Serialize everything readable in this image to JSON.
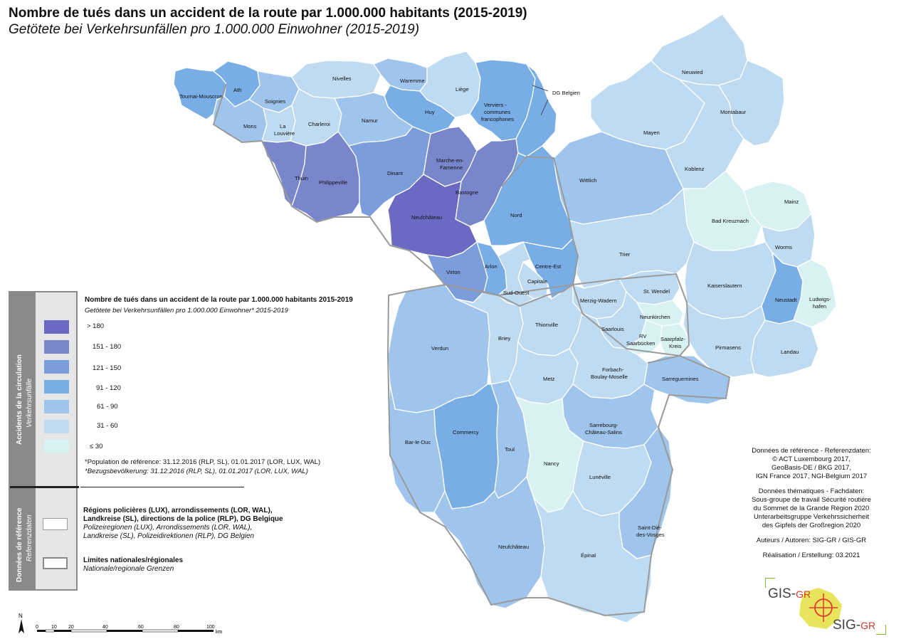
{
  "title": "Nombre de tués dans un accident de la route par 1.000.000 habitants (2015-2019)",
  "subtitle": "Getötete bei Verkehrsunfällen pro 1.000.000 Einwohner (2015-2019)",
  "colors": {
    "gt180": "#6a6ac2",
    "c151_180": "#7a86cc",
    "c121_150": "#7c9ddc",
    "c91_120": "#78ade6",
    "c61_90": "#a0c5ec",
    "c31_60": "#bedbf1",
    "le30": "#d8f1f3",
    "border": "#9a9a9a"
  },
  "legend": {
    "side_label_main": "Accidents de la circulation",
    "side_label_sub": "Verkehrsunfälle",
    "title": "Nombre de tués dans un accident de la route par 1.000.000 habitants 2015-2019",
    "subtitle": "Getötete bei Verkehrsunfällen pro 1.000.000 Einwohner* 2015-2019",
    "classes": [
      "> 180",
      "151 - 180",
      "121 - 150",
      "91 - 120",
      "61 - 90",
      "31 - 60",
      "≤ 30"
    ],
    "note_fr": "*Population de référence: 31.12.2016 (RLP, SL), 01.01.2017 (LOR, LUX, WAL)",
    "note_de": "*Bezugsbevölkerung: 31.12.2016 (RLP, SL), 01.01.2017 (LOR, LUX, WAL)"
  },
  "reference": {
    "side_label_main": "Données de référence",
    "side_label_sub": "Referenzdaten",
    "item1_bold_1": "Régions policières (LUX), arrondissements (LOR, WAL),",
    "item1_bold_2": "Landkreise (SL), directions de la police (RLP), DG Belgique",
    "item1_italic_1": "Polizeiregionen (LUX), Arrondissements (LOR, WAL),",
    "item1_italic_2": "Landkreise (SL), Polizeidirektionen (RLP), DG Belgien",
    "item2_bold": "Limites nationales/régionales",
    "item2_italic": "Nationale/regionale Grenzen"
  },
  "credits": {
    "ref_title": "Données de référence - Referenzdaten:",
    "ref_lines": [
      "© ACT Luxembourg 2017,",
      "GeoBasis-DE / BKG 2017,",
      "IGN France 2017, NGI-Belgium 2017"
    ],
    "theme_title": "Données thématiques - Fachdaten:",
    "theme_lines": [
      "Sous-groupe de travail Sécurité routière",
      "du Sommet de la Grande Région 2020",
      "Unterarbeitsgruppe Verkehrssicherheit",
      "des Gipfels der Großregion 2020"
    ],
    "authors": "Auteurs / Autoren: SIG-GR / GIS-GR",
    "realisation": "Réalisation / Erstellung: 03.2021"
  },
  "scale": {
    "ticks": [
      "0",
      "10",
      "20",
      "40",
      "60",
      "80",
      "100"
    ],
    "unit": "km"
  },
  "north": "N",
  "logo": {
    "top": "GIS-",
    "top_suffix": "GR",
    "bottom": "SIG-",
    "bottom_suffix": "GR"
  },
  "callout": "DG Belgien",
  "regions": [
    {
      "name": "Tournai-Mouscron",
      "cls": "c91_120"
    },
    {
      "name": "Ath",
      "cls": "c91_120"
    },
    {
      "name": "Soignies",
      "cls": "c61_90"
    },
    {
      "name": "Nivelles",
      "cls": "c31_60"
    },
    {
      "name": "Waremme",
      "cls": "c61_90"
    },
    {
      "name": "Liège",
      "cls": "c31_60"
    },
    {
      "name": "Huy",
      "cls": "c91_120"
    },
    {
      "name": "Verviers - communes francophones",
      "cls": "c91_120"
    },
    {
      "name": "DG Belgien",
      "cls": "c91_120"
    },
    {
      "name": "Mons",
      "cls": "c61_90"
    },
    {
      "name": "La Louvière",
      "cls": "c31_60"
    },
    {
      "name": "Charleroi",
      "cls": "c31_60"
    },
    {
      "name": "Namur",
      "cls": "c61_90"
    },
    {
      "name": "Thuin",
      "cls": "c151_180"
    },
    {
      "name": "Philippeville",
      "cls": "c151_180"
    },
    {
      "name": "Dinant",
      "cls": "c121_150"
    },
    {
      "name": "Marche-en-Famenne",
      "cls": "c151_180"
    },
    {
      "name": "Bastogne",
      "cls": "c151_180"
    },
    {
      "name": "Neufchâteau",
      "cls": "gt180"
    },
    {
      "name": "Virton",
      "cls": "c121_150"
    },
    {
      "name": "Arlon",
      "cls": "c91_120"
    },
    {
      "name": "Nord",
      "cls": "c91_120"
    },
    {
      "name": "Centre-Est",
      "cls": "c91_120"
    },
    {
      "name": "Capitale",
      "cls": "c31_60"
    },
    {
      "name": "Sud-Ouest",
      "cls": "c31_60"
    },
    {
      "name": "Neuwied",
      "cls": "c31_60"
    },
    {
      "name": "Montabaur",
      "cls": "c31_60"
    },
    {
      "name": "Mayen",
      "cls": "c31_60"
    },
    {
      "name": "Koblenz",
      "cls": "c31_60"
    },
    {
      "name": "Wittlich",
      "cls": "c61_90"
    },
    {
      "name": "Mainz",
      "cls": "le30"
    },
    {
      "name": "Bad Kreuznach",
      "cls": "le30"
    },
    {
      "name": "Worms",
      "cls": "c31_60"
    },
    {
      "name": "Trier",
      "cls": "c31_60"
    },
    {
      "name": "Kaiserslautern",
      "cls": "c31_60"
    },
    {
      "name": "Neustadt",
      "cls": "c91_120"
    },
    {
      "name": "Ludwigs-hafen",
      "cls": "le30"
    },
    {
      "name": "Landau",
      "cls": "c31_60"
    },
    {
      "name": "Pirmasens",
      "cls": "c31_60"
    },
    {
      "name": "Merzig-Wadern",
      "cls": "c31_60"
    },
    {
      "name": "St. Wendel",
      "cls": "c31_60"
    },
    {
      "name": "Neunkirchen",
      "cls": "le30"
    },
    {
      "name": "Saarlouis",
      "cls": "c31_60"
    },
    {
      "name": "RV Saarbrücken",
      "cls": "le30"
    },
    {
      "name": "Saarpfalz-Kreis",
      "cls": "le30"
    },
    {
      "name": "Verdun",
      "cls": "c61_90"
    },
    {
      "name": "Briey",
      "cls": "c31_60"
    },
    {
      "name": "Thionville",
      "cls": "c31_60"
    },
    {
      "name": "Metz",
      "cls": "c31_60"
    },
    {
      "name": "Forbach-Boulay-Moselle",
      "cls": "c31_60"
    },
    {
      "name": "Sarreguemines",
      "cls": "c61_90"
    },
    {
      "name": "Sarrebourg-Château-Salins",
      "cls": "c61_90"
    },
    {
      "name": "Bar-le-Duc",
      "cls": "c61_90"
    },
    {
      "name": "Commercy",
      "cls": "c91_120"
    },
    {
      "name": "Toul",
      "cls": "c61_90"
    },
    {
      "name": "Nancy",
      "cls": "le30"
    },
    {
      "name": "Lunéville",
      "cls": "c31_60"
    },
    {
      "name": "Saint-Dié-des-Vosges",
      "cls": "c61_90"
    },
    {
      "name": "Neufchâteau (Vosges)",
      "cls": "c61_90"
    },
    {
      "name": "Épinal",
      "cls": "c31_60"
    }
  ]
}
